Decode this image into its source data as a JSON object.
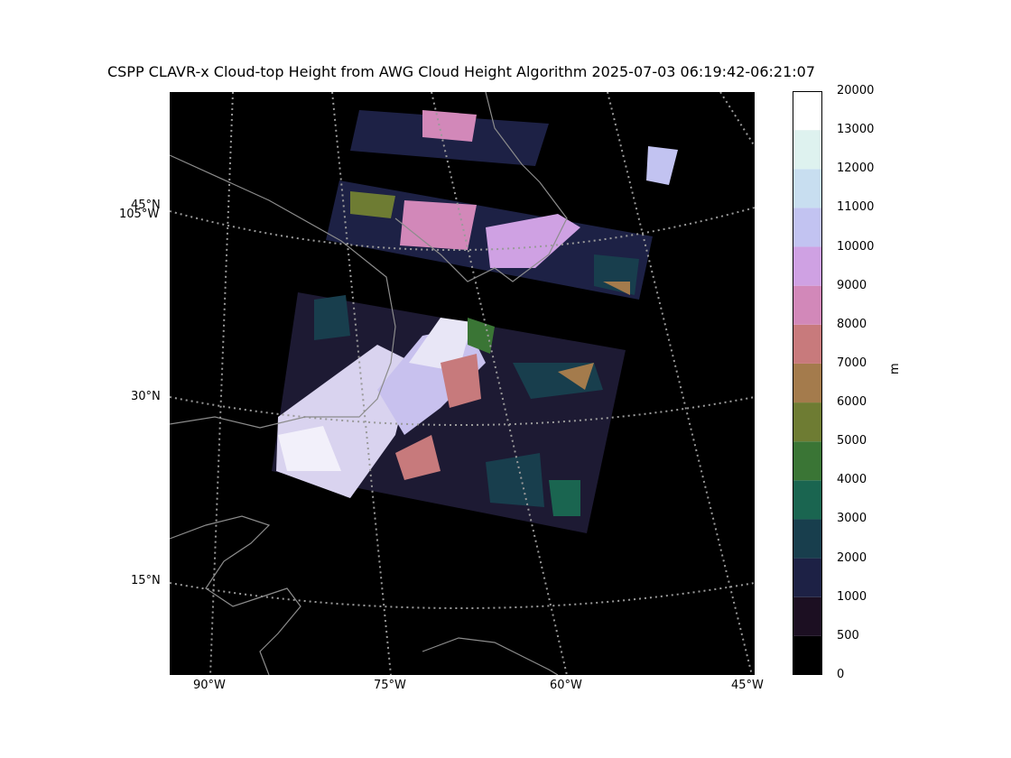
{
  "title": "CSPP CLAVR-x Cloud-top Height from AWG Cloud Height Algorithm 2025-07-03 06:19:42-06:21:07",
  "map": {
    "lon_labels": [
      "90°W",
      "75°W",
      "60°W",
      "45°W"
    ],
    "lat_labels": [
      "15°N",
      "30°N",
      "45°N"
    ],
    "extra_labels": [
      "105°W"
    ],
    "background_color": "#000000",
    "coastline_color": "#8c8c8c",
    "gridline_color": "#9a9a9a"
  },
  "colorbar": {
    "units": "m",
    "tick_labels": [
      "0",
      "500",
      "1000",
      "2000",
      "3000",
      "4000",
      "5000",
      "6000",
      "7000",
      "8000",
      "9000",
      "10000",
      "11000",
      "12000",
      "13000",
      "20000"
    ],
    "colors": [
      "#000000",
      "#1c0f22",
      "#1d2145",
      "#183e4d",
      "#1a6550",
      "#3a7535",
      "#6e7c33",
      "#a47b4c",
      "#c87a7c",
      "#d288b9",
      "#cfa1e3",
      "#c2c3f1",
      "#c8def0",
      "#def2ef",
      "#ffffff"
    ]
  }
}
